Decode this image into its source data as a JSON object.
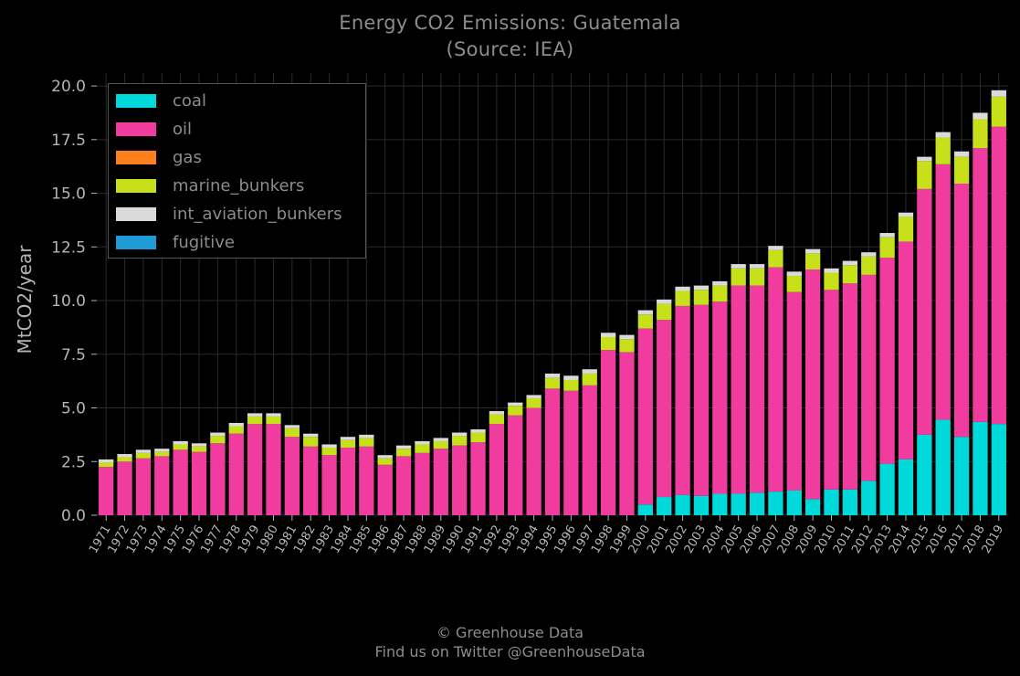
{
  "title_line1": "Energy CO2 Emissions: Guatemala",
  "title_line2": "(Source: IEA)",
  "footer_line1": "© Greenhouse Data",
  "footer_line2": "Find us on Twitter @GreenhouseData",
  "colors": {
    "coal": "#00d9d9",
    "oil": "#f03c9e",
    "gas": "#ff7f1e",
    "marine_bunkers": "#c7e01a",
    "int_aviation_bunkers": "#dadada",
    "fugitive": "#1f9bd6",
    "grid": "#2b2b2b",
    "axis_text": "#b5b5b5"
  },
  "chart_data": {
    "type": "bar",
    "stacked": true,
    "title": "Energy CO2 Emissions: Guatemala\n(Source: IEA)",
    "xlabel": "",
    "ylabel": "MtCO2/year",
    "ylim": [
      0,
      20.6
    ],
    "yticks": [
      "0.0",
      "2.5",
      "5.0",
      "7.5",
      "10.0",
      "12.5",
      "15.0",
      "17.5",
      "20.0"
    ],
    "grid": true,
    "legend_position": "top-left",
    "categories": [
      "1971",
      "1972",
      "1973",
      "1974",
      "1975",
      "1976",
      "1977",
      "1978",
      "1979",
      "1980",
      "1981",
      "1982",
      "1983",
      "1984",
      "1985",
      "1986",
      "1987",
      "1988",
      "1989",
      "1990",
      "1991",
      "1992",
      "1993",
      "1994",
      "1995",
      "1996",
      "1997",
      "1998",
      "1999",
      "2000",
      "2001",
      "2002",
      "2003",
      "2004",
      "2005",
      "2006",
      "2007",
      "2008",
      "2009",
      "2010",
      "2011",
      "2012",
      "2013",
      "2014",
      "2015",
      "2016",
      "2017",
      "2018",
      "2019"
    ],
    "series": [
      {
        "name": "coal",
        "values": [
          0,
          0,
          0,
          0,
          0,
          0,
          0,
          0,
          0,
          0,
          0,
          0,
          0,
          0,
          0,
          0,
          0,
          0,
          0,
          0,
          0,
          0,
          0,
          0,
          0,
          0,
          0,
          0,
          0,
          0.5,
          0.85,
          0.95,
          0.9,
          1.0,
          1.0,
          1.05,
          1.1,
          1.15,
          0.75,
          1.2,
          1.2,
          1.6,
          2.4,
          2.6,
          3.75,
          4.45,
          3.65,
          4.35,
          4.25
        ]
      },
      {
        "name": "oil",
        "values": [
          2.25,
          2.5,
          2.65,
          2.75,
          3.05,
          2.95,
          3.35,
          3.8,
          4.25,
          4.25,
          3.65,
          3.2,
          2.8,
          3.15,
          3.2,
          2.35,
          2.75,
          2.9,
          3.1,
          3.25,
          3.4,
          4.25,
          4.65,
          5.0,
          5.9,
          5.8,
          6.05,
          7.7,
          7.6,
          8.2,
          8.25,
          8.8,
          8.9,
          8.95,
          9.7,
          9.65,
          10.45,
          9.25,
          10.7,
          9.3,
          9.6,
          9.6,
          9.6,
          10.15,
          11.45,
          11.9,
          11.8,
          12.75,
          13.85
        ]
      },
      {
        "name": "gas",
        "values": [
          0,
          0,
          0,
          0,
          0,
          0,
          0,
          0,
          0,
          0,
          0,
          0,
          0,
          0,
          0,
          0,
          0,
          0,
          0,
          0,
          0,
          0,
          0,
          0,
          0,
          0,
          0,
          0,
          0,
          0,
          0,
          0,
          0,
          0,
          0,
          0,
          0,
          0,
          0,
          0,
          0,
          0,
          0,
          0,
          0,
          0,
          0,
          0,
          0
        ]
      },
      {
        "name": "marine_bunkers",
        "values": [
          0.2,
          0.2,
          0.25,
          0.2,
          0.25,
          0.25,
          0.35,
          0.35,
          0.35,
          0.35,
          0.4,
          0.45,
          0.35,
          0.35,
          0.4,
          0.3,
          0.35,
          0.4,
          0.35,
          0.45,
          0.45,
          0.45,
          0.45,
          0.45,
          0.5,
          0.5,
          0.55,
          0.6,
          0.6,
          0.65,
          0.75,
          0.7,
          0.7,
          0.75,
          0.8,
          0.8,
          0.8,
          0.75,
          0.75,
          0.8,
          0.85,
          0.85,
          0.95,
          1.15,
          1.3,
          1.25,
          1.25,
          1.35,
          1.4
        ]
      },
      {
        "name": "int_aviation_bunkers",
        "values": [
          0.15,
          0.15,
          0.15,
          0.15,
          0.15,
          0.15,
          0.15,
          0.15,
          0.15,
          0.15,
          0.15,
          0.15,
          0.15,
          0.15,
          0.15,
          0.15,
          0.15,
          0.15,
          0.15,
          0.15,
          0.15,
          0.15,
          0.15,
          0.15,
          0.2,
          0.2,
          0.2,
          0.2,
          0.2,
          0.2,
          0.2,
          0.2,
          0.2,
          0.2,
          0.2,
          0.2,
          0.2,
          0.2,
          0.2,
          0.2,
          0.2,
          0.2,
          0.2,
          0.2,
          0.2,
          0.25,
          0.25,
          0.3,
          0.3
        ]
      },
      {
        "name": "fugitive",
        "values": [
          0,
          0,
          0,
          0,
          0,
          0,
          0,
          0,
          0,
          0,
          0,
          0,
          0,
          0,
          0,
          0,
          0,
          0,
          0,
          0,
          0,
          0,
          0,
          0,
          0,
          0,
          0,
          0,
          0,
          0,
          0,
          0,
          0,
          0,
          0,
          0,
          0,
          0,
          0,
          0,
          0,
          0,
          0,
          0,
          0,
          0,
          0,
          0,
          0
        ]
      }
    ]
  }
}
